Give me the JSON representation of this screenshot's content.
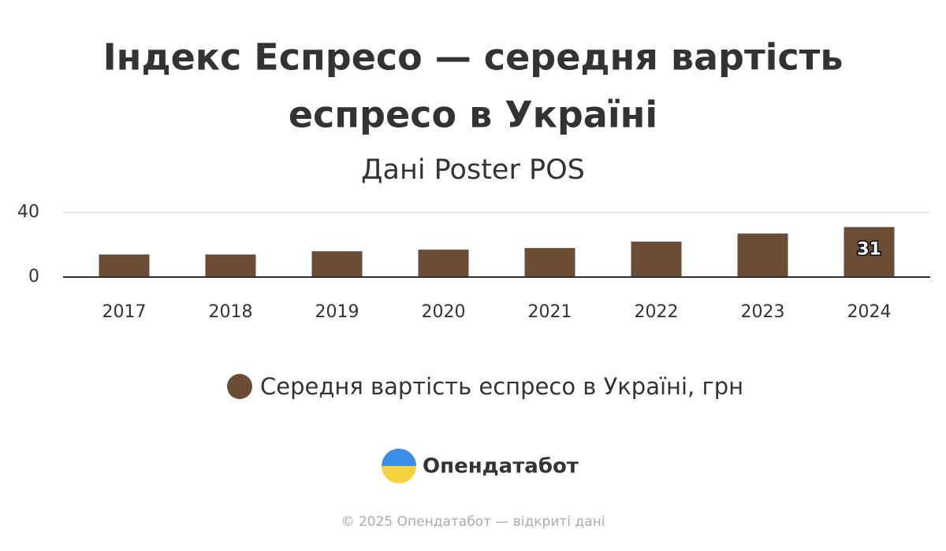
{
  "chart_data": {
    "type": "bar",
    "title": [
      "Індекс Еспресо — середня вартість",
      "еспресо в Україні"
    ],
    "subtitle": "Дані Poster POS",
    "categories": [
      "2017",
      "2018",
      "2019",
      "2020",
      "2021",
      "2022",
      "2023",
      "2024"
    ],
    "series": [
      {
        "name": "Середня вартість еспресо в Україні, грн",
        "color": "#6b4c35",
        "values": [
          14,
          14,
          16,
          17,
          18,
          22,
          27,
          31
        ],
        "value_labels": [
          null,
          null,
          null,
          null,
          null,
          null,
          null,
          "31"
        ]
      }
    ],
    "ylim": [
      0,
      40
    ],
    "yticks": [
      0,
      40
    ],
    "grid": true,
    "legend": "bottom"
  },
  "logo": "Опендатабот",
  "footer": "© 2025 Опендатабот — відкриті дані"
}
